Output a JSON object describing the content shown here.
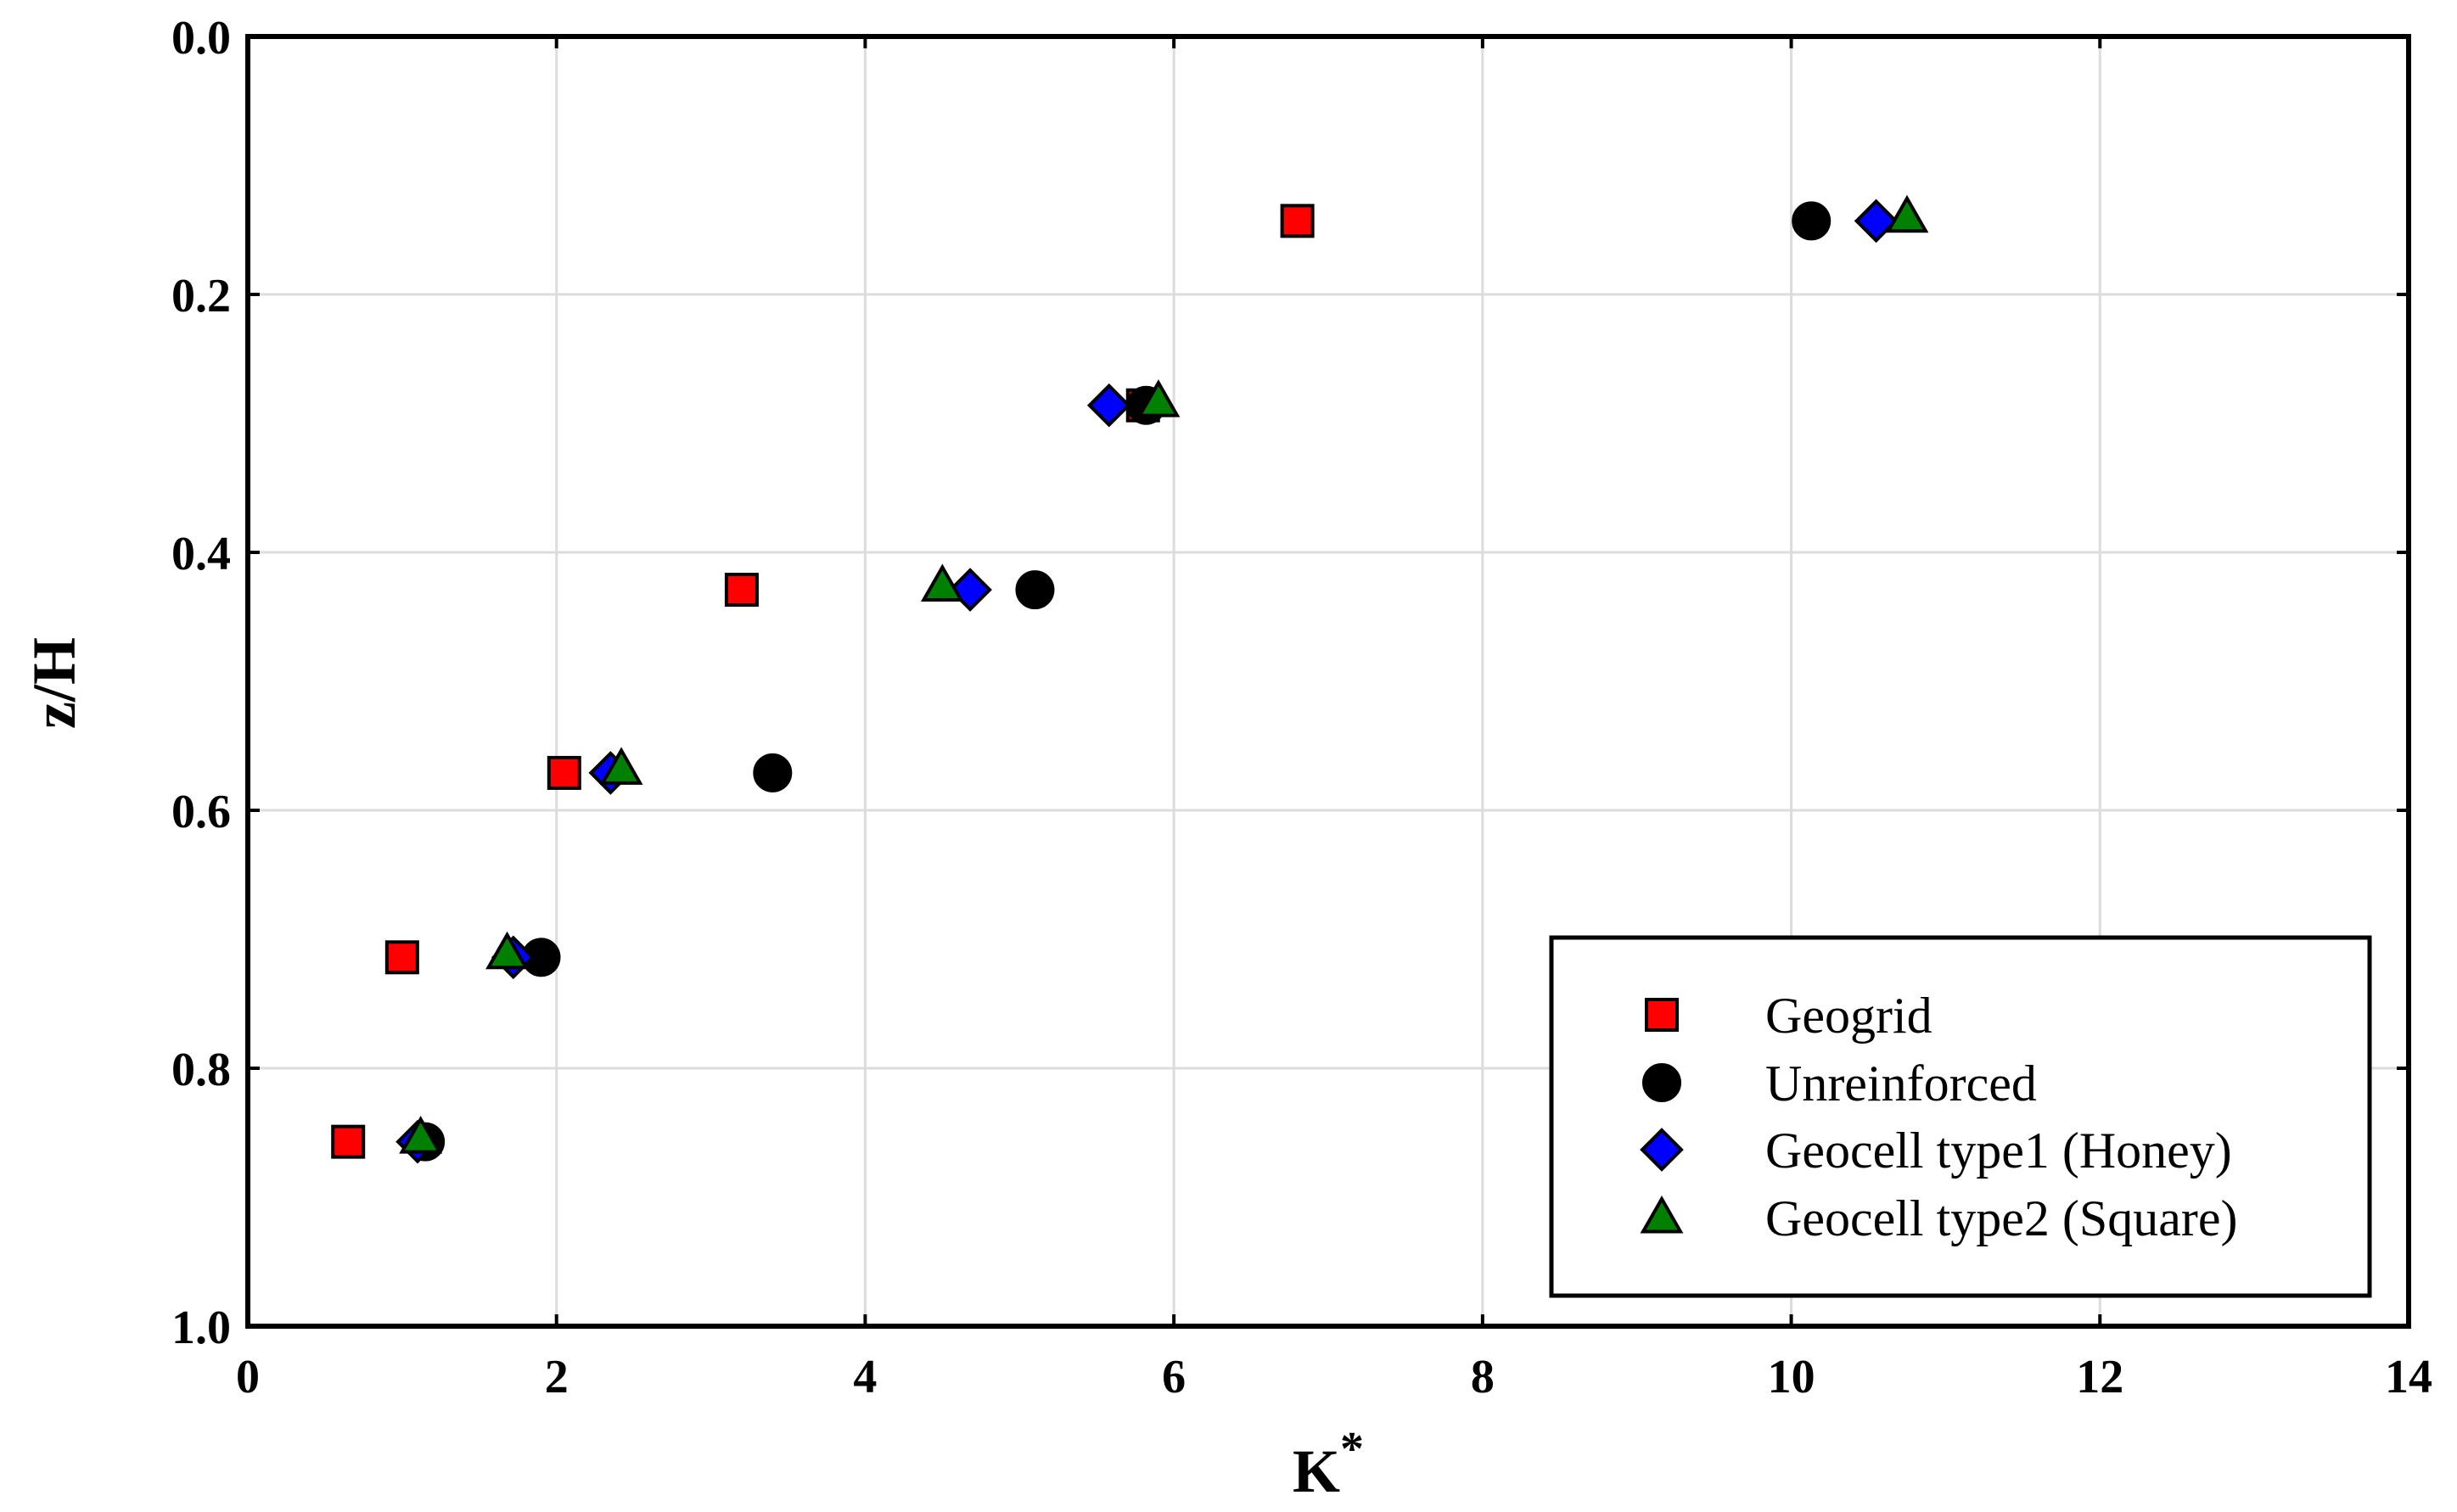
{
  "chart_data": {
    "type": "scatter",
    "title": "",
    "xlabel": "K",
    "xlabel_superscript": "*",
    "ylabel": "z/H",
    "xlim": [
      0,
      14
    ],
    "ylim": [
      0,
      1
    ],
    "y_inverted": true,
    "grid": true,
    "legend_position": "bottom-right",
    "x_ticks": [
      "0",
      "2",
      "4",
      "6",
      "8",
      "10",
      "12",
      "14"
    ],
    "y_ticks": [
      "0.0",
      "0.2",
      "0.4",
      "0.6",
      "0.8",
      "1.0"
    ],
    "series": [
      {
        "name": "Geogrid",
        "marker": "square",
        "color": "#ff0000",
        "points": [
          [
            6.8,
            0.143
          ],
          [
            5.8,
            0.286
          ],
          [
            3.2,
            0.429
          ],
          [
            2.05,
            0.571
          ],
          [
            1.0,
            0.714
          ],
          [
            0.65,
            0.857
          ]
        ]
      },
      {
        "name": "Unreinforced",
        "marker": "circle",
        "color": "#000000",
        "points": [
          [
            10.13,
            0.143
          ],
          [
            5.82,
            0.286
          ],
          [
            5.1,
            0.429
          ],
          [
            3.4,
            0.571
          ],
          [
            1.9,
            0.714
          ],
          [
            1.15,
            0.857
          ]
        ]
      },
      {
        "name": "Geocell type1 (Honey)",
        "marker": "diamond",
        "color": "#0000ff",
        "points": [
          [
            10.55,
            0.143
          ],
          [
            5.58,
            0.286
          ],
          [
            4.68,
            0.429
          ],
          [
            2.35,
            0.571
          ],
          [
            1.72,
            0.714
          ],
          [
            1.1,
            0.857
          ]
        ]
      },
      {
        "name": "Geocell type2 (Square)",
        "marker": "triangle",
        "color": "#008000",
        "points": [
          [
            10.75,
            0.14
          ],
          [
            5.9,
            0.283
          ],
          [
            4.5,
            0.426
          ],
          [
            2.42,
            0.568
          ],
          [
            1.68,
            0.711
          ],
          [
            1.12,
            0.854
          ]
        ]
      }
    ]
  }
}
